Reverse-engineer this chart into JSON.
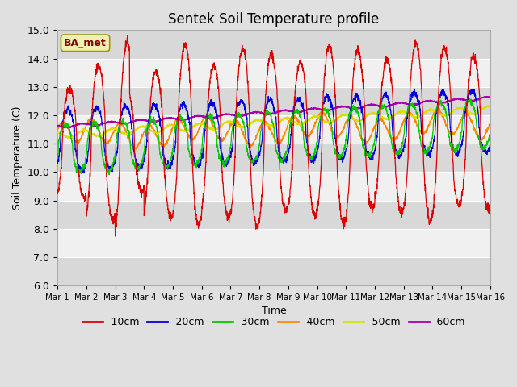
{
  "title": "Sentek Soil Temperature profile",
  "xlabel": "Time",
  "ylabel": "Soil Temperature (C)",
  "ylim": [
    6.0,
    15.0
  ],
  "yticks": [
    6.0,
    7.0,
    8.0,
    9.0,
    10.0,
    11.0,
    12.0,
    13.0,
    14.0,
    15.0
  ],
  "x_labels": [
    "Mar 1",
    "Mar 2",
    "Mar 3",
    "Mar 4",
    "Mar 5",
    "Mar 6",
    "Mar 7",
    "Mar 8",
    "Mar 9",
    "Mar 10",
    "Mar 11",
    "Mar 12",
    "Mar 13",
    "Mar 14",
    "Mar 15",
    "Mar 16"
  ],
  "n_days": 15,
  "label_text": "BA_met",
  "series_colors": {
    "-10cm": "#dd0000",
    "-20cm": "#0000dd",
    "-30cm": "#00cc00",
    "-40cm": "#ff8800",
    "-50cm": "#dddd00",
    "-60cm": "#aa00aa"
  },
  "background_color": "#e0e0e0",
  "plot_bg_color": "#e8e8e8",
  "band_color_light": "#f0f0f0",
  "band_color_dark": "#d8d8d8"
}
